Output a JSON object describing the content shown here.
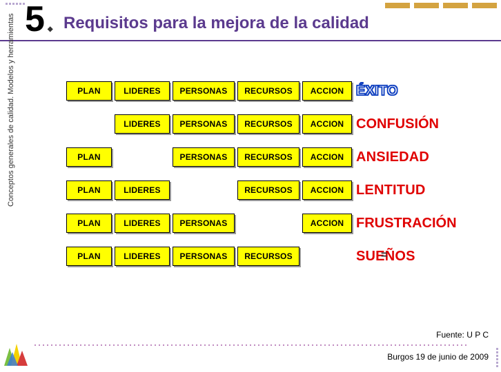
{
  "slide": {
    "number": "5",
    "diamond": "◆",
    "title": "Requisitos para la mejora de la calidad",
    "sidebar_text": "Conceptos generales de calidad. Modelos y herramientas",
    "source": "Fuente: U P C",
    "footer": "Burgos 19 de junio  de  2009"
  },
  "decor": {
    "header_bar_color": "#d4a340",
    "title_color": "#5b3a8e",
    "box_bg": "#ffff00",
    "dotted_color": "#c08bc0"
  },
  "labels": {
    "plan": "PLAN",
    "lideres": "LIDERES",
    "personas": "PERSONAS",
    "recursos": "RECURSOS",
    "accion": "ACCION"
  },
  "outcomes": {
    "exito": "ÉXITO",
    "confusion": "CONFUSIÓN",
    "ansiedad": "ANSIEDAD",
    "lentitud": "LENTITUD",
    "frustracion": "FRUSTRACIÓN",
    "suenos": "SUEÑOS"
  },
  "grid": {
    "rows": [
      {
        "cells": [
          true,
          true,
          true,
          true,
          true
        ],
        "outcome_key": "exito",
        "outcome_class": "outline-blue"
      },
      {
        "cells": [
          false,
          true,
          true,
          true,
          true
        ],
        "outcome_key": "confusion",
        "outcome_class": "red red-bigsp"
      },
      {
        "cells": [
          true,
          false,
          true,
          true,
          true
        ],
        "outcome_key": "ansiedad",
        "outcome_class": "red"
      },
      {
        "cells": [
          true,
          true,
          false,
          true,
          true
        ],
        "outcome_key": "lentitud",
        "outcome_class": "red"
      },
      {
        "cells": [
          true,
          true,
          true,
          false,
          true
        ],
        "outcome_key": "frustracion",
        "outcome_class": "red red-bigsp"
      },
      {
        "cells": [
          true,
          true,
          true,
          true,
          false
        ],
        "outcome_key": "suenos",
        "outcome_class": "red"
      }
    ],
    "col_labels": [
      "plan",
      "lideres",
      "personas",
      "recursos",
      "accion"
    ]
  }
}
